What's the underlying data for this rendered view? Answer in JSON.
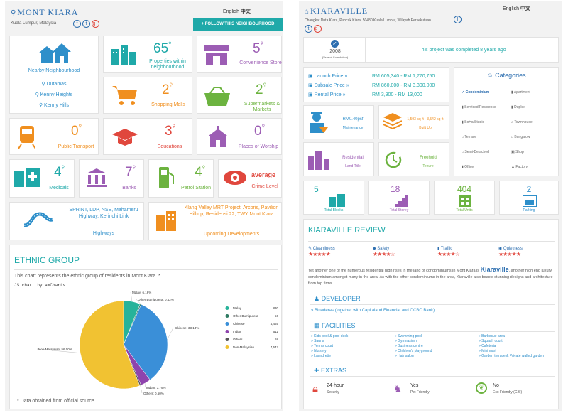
{
  "left": {
    "header": {
      "title": "MONT KIARA",
      "subtitle": "Kuala Lumpur, Malaysia",
      "lang_en": "English",
      "lang_cn": "中文",
      "follow_button": "FOLLOW THIS NEIGHBOURHOOD",
      "social": [
        "f",
        "t",
        "g+"
      ]
    },
    "nearby": {
      "title": "Nearby Neighbourhood",
      "items": [
        "Dutamas",
        "Kenny Heights",
        "Kenny Hills"
      ]
    },
    "stats": [
      {
        "num": "65",
        "label": "Properties within neighbourhood"
      },
      {
        "num": "5",
        "label": "Convenience Store"
      },
      {
        "num": "2",
        "label": "Shopping Malls"
      },
      {
        "num": "2",
        "label": "Supermarkets & Markets"
      },
      {
        "num": "0",
        "label": "Public Transport"
      },
      {
        "num": "3",
        "label": "Educations"
      },
      {
        "num": "0",
        "label": "Places of Worship"
      },
      {
        "num": "4",
        "label": "Medicals"
      },
      {
        "num": "7",
        "label": "Banks"
      },
      {
        "num": "4",
        "label": "Petrol Station"
      },
      {
        "num": "average",
        "label": "Crime Level"
      }
    ],
    "highways": {
      "text": "SPRINT, LDP, NSE, Mahameru Highway, Kerinchi Link",
      "label": "Highways"
    },
    "developments": {
      "text": "Klang Valley MRT Project, Arcoris, Pavilion Hilltop, Residensi 22, TWY Mont Kiara",
      "label": "Upcoming Developments"
    },
    "ethnic": {
      "title": "ETHNIC GROUP",
      "desc": "This chart represents the ethnic group of residents in Mont Kiara. *",
      "credit": "JS chart by amCharts",
      "footnote": "* Data obtained from official source."
    }
  },
  "chart_data": {
    "type": "pie",
    "slices": [
      {
        "name": "Malay",
        "value": 830,
        "pct_label": "Malay: 6.16%",
        "color": "#27b39a"
      },
      {
        "name": "Other Bumiputera",
        "value": 56,
        "pct_label": "Other Bumiputera: 0.42%",
        "color": "#2f7b63"
      },
      {
        "name": "Chinese",
        "value": 4465,
        "pct_label": "Chinese: 33.13%",
        "color": "#3a8fd8"
      },
      {
        "name": "Indian",
        "value": 511,
        "pct_label": "Indian: 3.79%",
        "color": "#8e44ad"
      },
      {
        "name": "Others",
        "value": 68,
        "pct_label": "Others: 0.50%",
        "color": "#555555"
      },
      {
        "name": "Non-Malaysian",
        "value": 7547,
        "pct_label": "Non-Malaysian: 56.00%",
        "color": "#f1c232"
      }
    ],
    "legend_position": "right"
  },
  "right": {
    "header": {
      "title": "KIARAVILLE",
      "address": "Changkat Duta Kiara, Puncak Kiara, 50480 Kuala Lumpur, Wilayah Persekutuan",
      "lang_en": "English",
      "lang_cn": "中文",
      "social": [
        "f",
        "t",
        "g+"
      ]
    },
    "completion": {
      "year": "2008",
      "year_label": "(Year of Completion)",
      "message": "This project was completed 8 years ago"
    },
    "prices": [
      {
        "label": "Launch Price »",
        "value": "RM 605,340 - RM 1,770,750"
      },
      {
        "label": "Subsale Price »",
        "value": "RM 860,000 - RM 3,300,000"
      },
      {
        "label": "Rental Price »",
        "value": "RM 3,900 - RM 13,000"
      }
    ],
    "info": [
      {
        "value": "RM0.40psf",
        "label": "Maintenance"
      },
      {
        "value": "1,593 sq ft - 3,542 sq ft",
        "label": "Built Up"
      },
      {
        "value": "Residential",
        "label": "Land Title"
      },
      {
        "value": "Freehold",
        "label": "Tenure"
      }
    ],
    "categories": {
      "title": "Categories",
      "items": [
        "Condominium",
        "Apartment",
        "Serviced Residence",
        "Duplex",
        "SoHo/Studio",
        "Townhouse",
        "Terrace",
        "Bungalow",
        "Semi-Detached",
        "Shop",
        "Office",
        "Factory"
      ]
    },
    "counts": [
      {
        "num": "5",
        "label": "Total Blocks"
      },
      {
        "num": "18",
        "label": "Total Storey"
      },
      {
        "num": "404",
        "label": "Total Units"
      },
      {
        "num": "2",
        "label": "Parking"
      }
    ],
    "review": {
      "title": "KIARAVILLE REVIEW",
      "ratings": [
        {
          "label": "Cleanliness",
          "stars": "★★★★★"
        },
        {
          "label": "Safety",
          "stars": "★★★★☆"
        },
        {
          "label": "Traffic",
          "stars": "★★★★☆"
        },
        {
          "label": "Quietness",
          "stars": "★★★★★"
        }
      ],
      "text1": "Yet another one of the numerous residential high rises in the land of condominiums in Mont Kiara is ",
      "brand": "Kiaraville",
      "text2": ", another high end luxury condominium amongst many in the area. As with the other condominiums in the area, Kiaraville also boasts stunning designs and architecture from top firms.",
      "developer_title": "DEVELOPER",
      "developer": "» Binaderas (together with Capitaland Financial and OCBC Bank)",
      "facilities_title": "FACILITIES",
      "facilities": [
        [
          "» Kids pool & pool deck",
          "» Sauna",
          "» Tennis court",
          "» Nursery",
          "» Laundrette"
        ],
        [
          "» Swimming pool",
          "» Gymnasium",
          "» Business centre",
          "» Children's playground",
          "» Hair salon"
        ],
        [
          "» Barbecue area",
          "» Squash court",
          "» Cafeteria",
          "» Mini mart",
          "» Garden terrace & Private walled garden"
        ]
      ],
      "extras_title": "EXTRAS",
      "extras": [
        {
          "value": "24-hour",
          "label": "Security"
        },
        {
          "value": "Yes",
          "label": "Pet Friendly"
        },
        {
          "value": "No",
          "label": "Eco Friendly (GBI)"
        }
      ]
    }
  }
}
